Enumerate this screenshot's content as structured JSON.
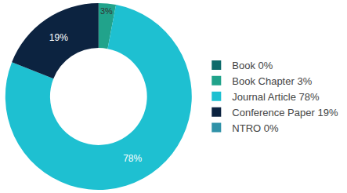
{
  "chart_data": {
    "type": "pie",
    "categories": [
      "Book 0%",
      "Book Chapter 3%",
      "Journal Article 78%",
      "Conference Paper 19%",
      "NTRO 0%"
    ],
    "values": [
      0,
      3,
      78,
      19,
      0
    ],
    "value_labels": [
      null,
      "3%",
      "78%",
      "19%",
      null
    ],
    "colors": [
      "#0e6b6b",
      "#21a38b",
      "#1ec0d1",
      "#0c2340",
      "#3092a8"
    ],
    "data_labels": true,
    "legend": "right"
  }
}
